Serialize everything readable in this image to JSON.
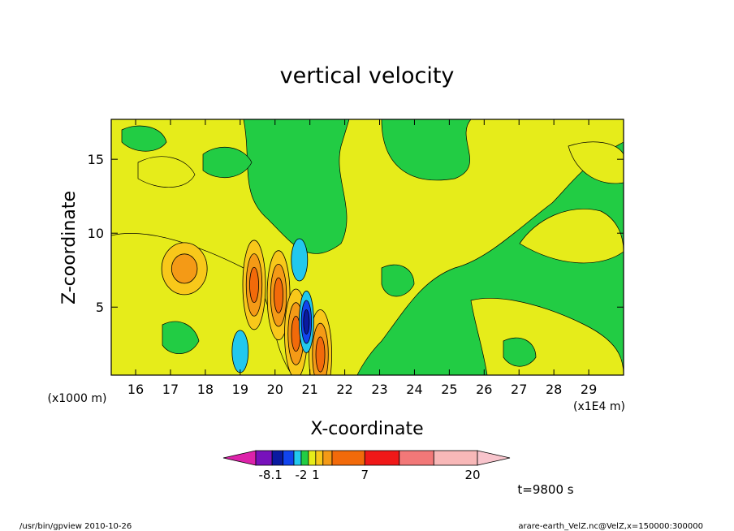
{
  "chart_data": {
    "type": "heatmap",
    "title": "vertical velocity",
    "xlabel": "X-coordinate",
    "ylabel": "Z-coordinate",
    "x_unit_note": "(x1E4 m)",
    "y_unit_note": "(x1000 m)",
    "xlim": [
      15.3,
      30.0
    ],
    "ylim": [
      0.4,
      17.7
    ],
    "x_ticks": [
      "16",
      "17",
      "18",
      "19",
      "20",
      "21",
      "22",
      "23",
      "24",
      "25",
      "26",
      "27",
      "28",
      "29"
    ],
    "y_ticks": [
      "5",
      "10",
      "15"
    ],
    "time_label": "t=9800 s",
    "colorbar": {
      "tick_labels": [
        "-8.1",
        "-2",
        "1",
        "7",
        "20"
      ],
      "colors": [
        "#dd22aa",
        "#7711bb",
        "#0a1aa0",
        "#1144ee",
        "#22c8ee",
        "#22cc44",
        "#e6ec1a",
        "#f8c81a",
        "#f49a16",
        "#f26a0a",
        "#f01818",
        "#f27878",
        "#f8b8b8",
        "#f8c4cc"
      ]
    },
    "features": [
      {
        "kind": "updraft",
        "x": 19.4,
        "z": 6.5,
        "peak": 7,
        "color": "#f26a0a"
      },
      {
        "kind": "updraft",
        "x": 20.1,
        "z": 5.8,
        "peak": 7,
        "color": "#f26a0a"
      },
      {
        "kind": "updraft",
        "x": 20.6,
        "z": 3.2,
        "peak": 7,
        "color": "#f26a0a"
      },
      {
        "kind": "updraft",
        "x": 21.3,
        "z": 1.8,
        "peak": 7,
        "color": "#f26a0a"
      },
      {
        "kind": "updraft",
        "x": 17.4,
        "z": 7.6,
        "peak": 3,
        "color": "#f49a16"
      },
      {
        "kind": "downdraft",
        "x": 20.9,
        "z": 4.0,
        "peak": -8.1,
        "color": "#0a1aa0"
      },
      {
        "kind": "downdraft",
        "x": 19.0,
        "z": 2.0,
        "peak": -2,
        "color": "#22c8ee"
      },
      {
        "kind": "downdraft",
        "x": 20.7,
        "z": 8.2,
        "peak": -2,
        "color": "#22c8ee"
      }
    ]
  },
  "footer": {
    "left": "/usr/bin/gpview   2010-10-26",
    "right": "arare-earth_VelZ.nc@VelZ,x=150000:300000"
  }
}
